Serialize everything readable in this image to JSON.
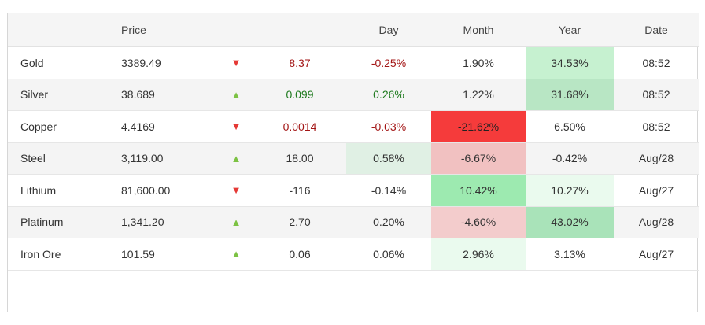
{
  "headers": [
    "",
    "Price",
    "",
    "",
    "Day",
    "Month",
    "Year",
    "Date"
  ],
  "colors": {
    "up_arrow": "#7cc243",
    "down_arrow": "#e53935",
    "positive_text": "#1e7a1e",
    "negative_text": "#a31515"
  },
  "rows": [
    {
      "name": "Gold",
      "price": "3389.49",
      "dir": "down",
      "change": "8.37",
      "change_color": "neg",
      "day": "-0.25%",
      "day_color": "neg",
      "day_bg": "",
      "month": "1.90%",
      "month_bg": "",
      "month_color": "",
      "year": "34.53%",
      "year_bg": "#c6f1d0",
      "date": "08:52"
    },
    {
      "name": "Silver",
      "price": "38.689",
      "dir": "up",
      "change": "0.099",
      "change_color": "pos",
      "day": "0.26%",
      "day_color": "pos",
      "day_bg": "",
      "month": "1.22%",
      "month_bg": "",
      "month_color": "",
      "year": "31.68%",
      "year_bg": "#b8e6c4",
      "date": "08:52"
    },
    {
      "name": "Copper",
      "price": "4.4169",
      "dir": "down",
      "change": "0.0014",
      "change_color": "neg",
      "day": "-0.03%",
      "day_color": "neg",
      "day_bg": "",
      "month": "-21.62%",
      "month_bg": "#f53b3b",
      "month_color": "#222",
      "year": "6.50%",
      "year_bg": "",
      "date": "08:52"
    },
    {
      "name": "Steel",
      "price": "3,119.00",
      "dir": "up",
      "change": "18.00",
      "change_color": "",
      "day": "0.58%",
      "day_color": "",
      "day_bg": "#e0f0e4",
      "month": "-6.67%",
      "month_bg": "#f1c1c1",
      "month_color": "",
      "year": "-0.42%",
      "year_bg": "",
      "date": "Aug/28"
    },
    {
      "name": "Lithium",
      "price": "81,600.00",
      "dir": "down",
      "change": "-116",
      "change_color": "",
      "day": "-0.14%",
      "day_color": "",
      "day_bg": "",
      "month": "10.42%",
      "month_bg": "#9deab0",
      "month_color": "",
      "year": "10.27%",
      "year_bg": "#eafaee",
      "date": "Aug/27"
    },
    {
      "name": "Platinum",
      "price": "1,341.20",
      "dir": "up",
      "change": "2.70",
      "change_color": "",
      "day": "0.20%",
      "day_color": "",
      "day_bg": "",
      "month": "-4.60%",
      "month_bg": "#f3cccc",
      "month_color": "",
      "year": "43.02%",
      "year_bg": "#a9e3b9",
      "date": "Aug/28"
    },
    {
      "name": "Iron Ore",
      "price": "101.59",
      "dir": "up",
      "change": "0.06",
      "change_color": "",
      "day": "0.06%",
      "day_color": "",
      "day_bg": "",
      "month": "2.96%",
      "month_bg": "#eafaee",
      "month_color": "",
      "year": "3.13%",
      "year_bg": "",
      "date": "Aug/27"
    }
  ]
}
